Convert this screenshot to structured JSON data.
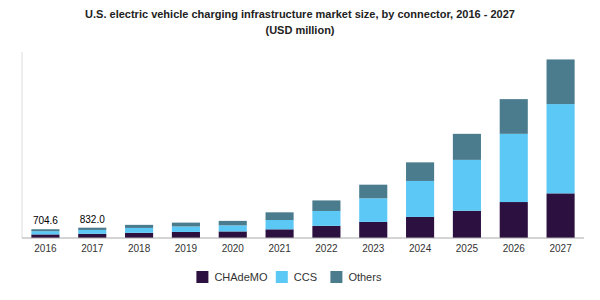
{
  "chart_data": {
    "type": "bar",
    "stacked": true,
    "title": "U.S. electric vehicle charging infrastructure market size, by connector, 2016 - 2027",
    "subtitle": "(USD million)",
    "categories": [
      "2016",
      "2017",
      "2018",
      "2019",
      "2020",
      "2021",
      "2022",
      "2023",
      "2024",
      "2025",
      "2026",
      "2027"
    ],
    "series": [
      {
        "name": "CHAdeMO",
        "color": "#2b1040",
        "values": [
          290,
          340,
          420,
          490,
          530,
          700,
          980,
          1300,
          1700,
          2200,
          2900,
          3600
        ]
      },
      {
        "name": "CCS",
        "color": "#5bc8f5",
        "values": [
          260,
          310,
          390,
          440,
          490,
          750,
          1200,
          1900,
          2900,
          4100,
          5500,
          7200
        ]
      },
      {
        "name": "Others",
        "color": "#4a7c8e",
        "values": [
          154.6,
          182.0,
          250,
          310,
          360,
          620,
          850,
          1100,
          1500,
          2100,
          2800,
          3600
        ]
      }
    ],
    "annotations": [
      {
        "text": "704.6",
        "category": "2016"
      },
      {
        "text": "832.0",
        "category": "2017"
      }
    ],
    "ylim": [
      0,
      15000
    ],
    "grid": false,
    "legend": "bottom",
    "tick_labels": "x"
  }
}
